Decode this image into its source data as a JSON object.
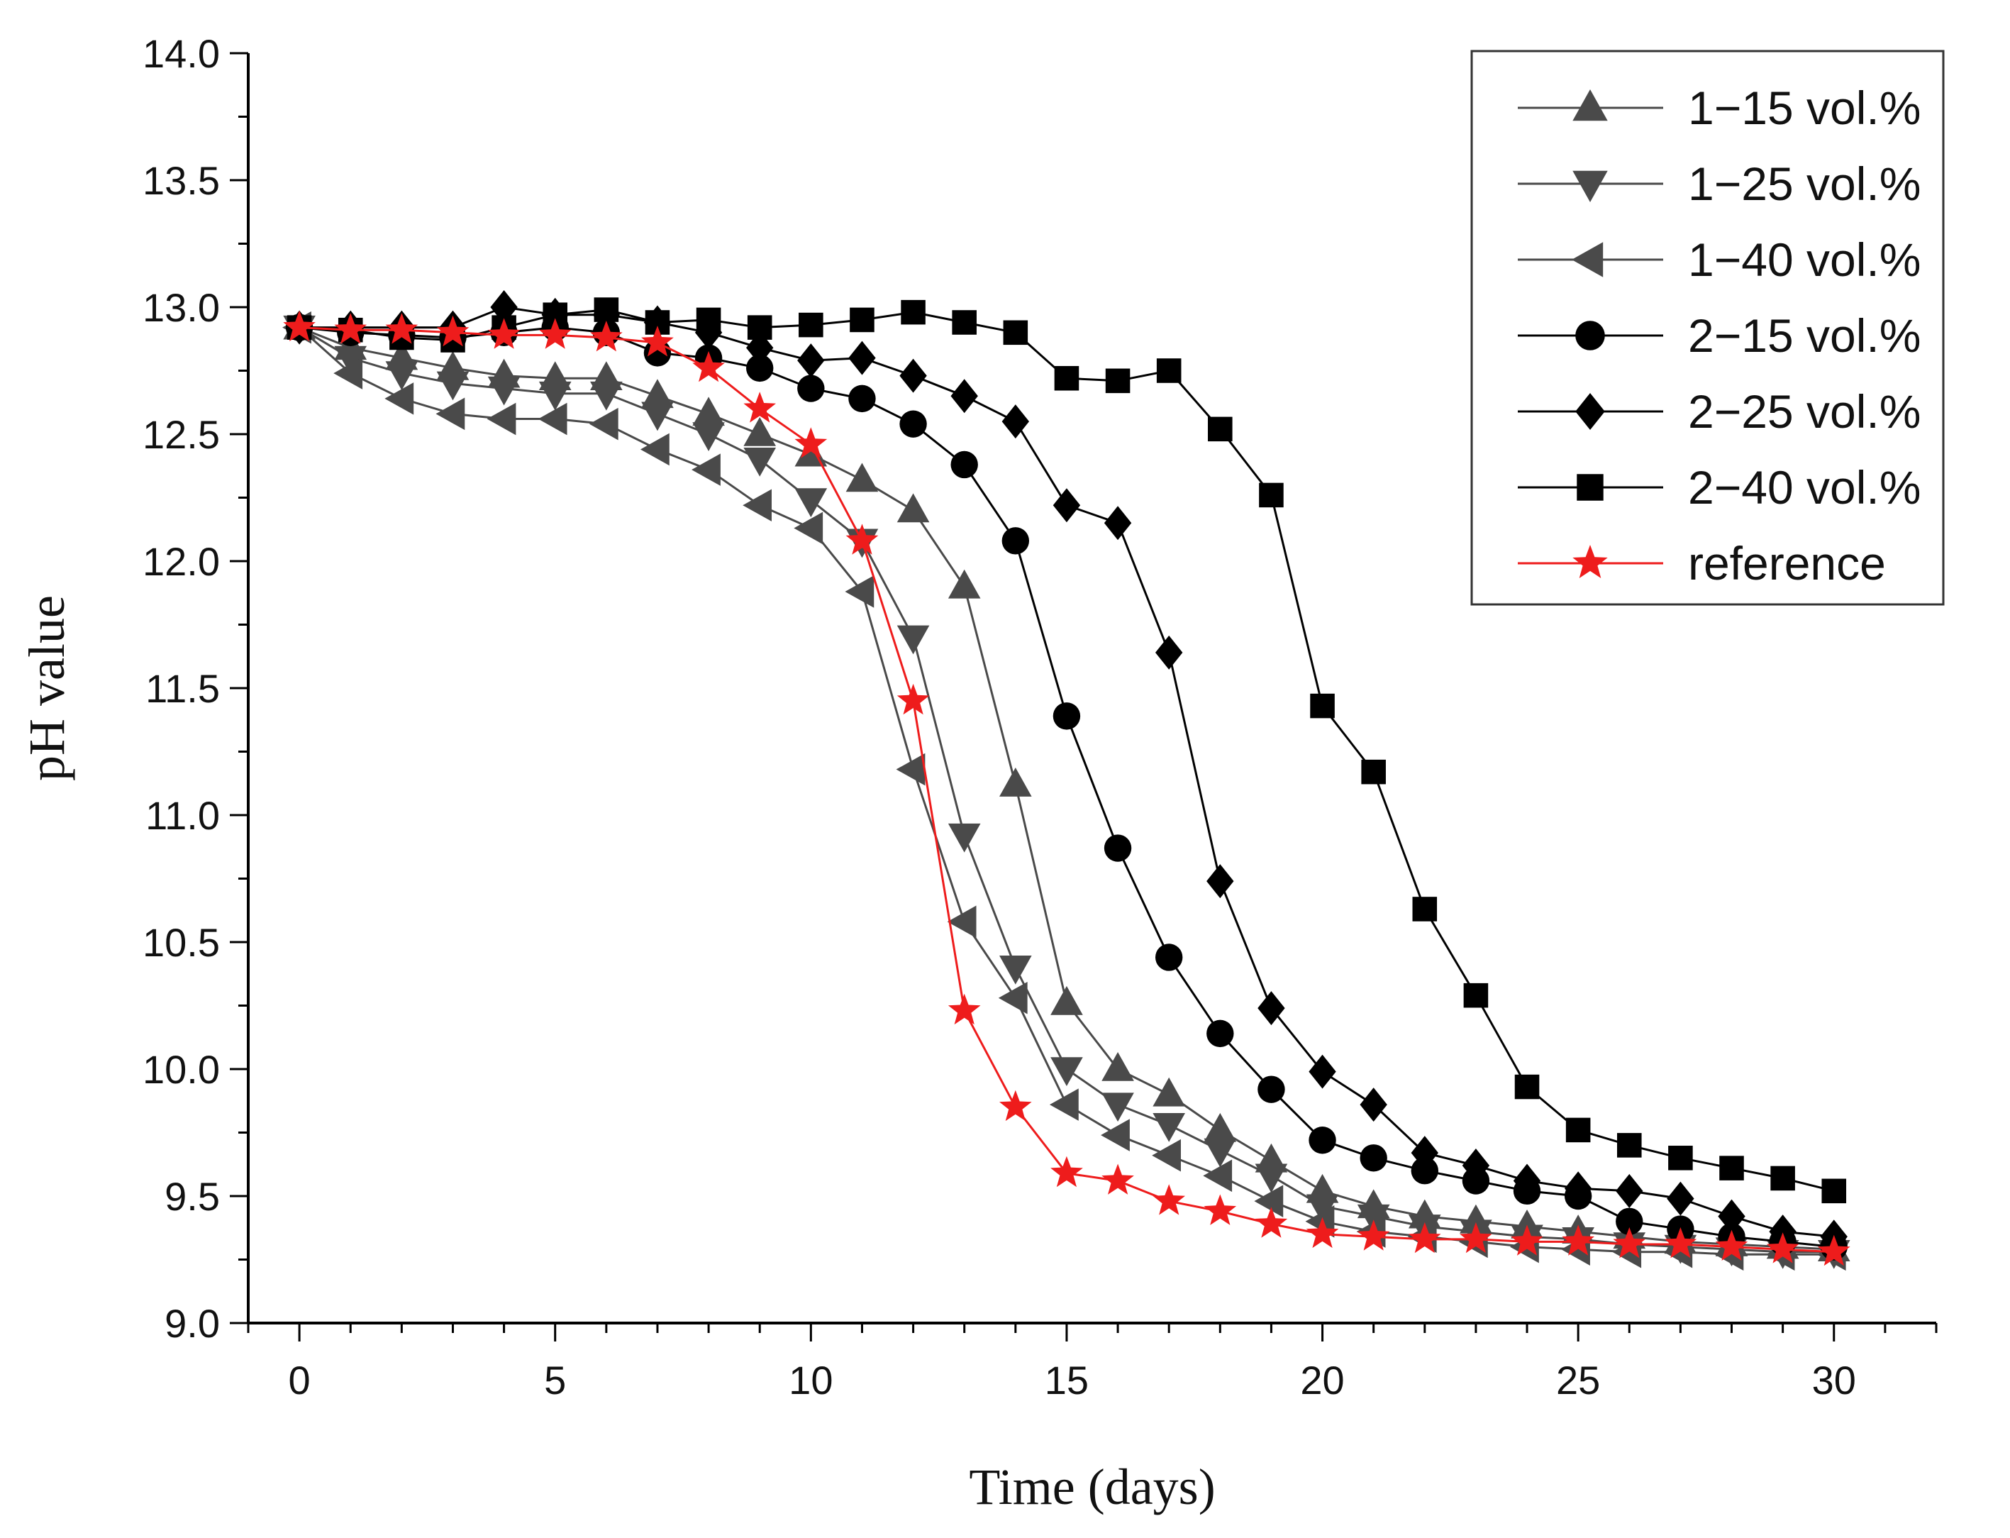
{
  "chart_data": {
    "type": "line",
    "xlabel": "Time (days)",
    "ylabel": "pH value",
    "xlim": [
      -1,
      32
    ],
    "ylim": [
      9.0,
      14.0
    ],
    "x_ticks": [
      "0",
      "5",
      "10",
      "15",
      "20",
      "25",
      "30"
    ],
    "y_ticks": [
      "9.0",
      "9.5",
      "10.0",
      "10.5",
      "11.0",
      "11.5",
      "12.0",
      "12.5",
      "13.0",
      "13.5",
      "14.0"
    ],
    "grid": false,
    "legend_position": "top-right",
    "x": [
      0,
      1,
      2,
      3,
      4,
      5,
      6,
      7,
      8,
      9,
      10,
      11,
      12,
      13,
      14,
      15,
      16,
      17,
      18,
      19,
      20,
      21,
      22,
      23,
      24,
      25,
      26,
      27,
      28,
      29,
      30
    ],
    "series": [
      {
        "name": "1−15 vol.%",
        "marker": "triangle-up",
        "color": "#4a4a4a",
        "values": [
          12.92,
          12.84,
          12.8,
          12.76,
          12.73,
          12.72,
          12.72,
          12.65,
          12.58,
          12.5,
          12.42,
          12.32,
          12.2,
          11.9,
          11.12,
          10.26,
          10.0,
          9.9,
          9.76,
          9.64,
          9.52,
          9.46,
          9.42,
          9.4,
          9.38,
          9.36,
          9.34,
          9.32,
          9.31,
          9.3,
          9.29
        ]
      },
      {
        "name": "1−25 vol.%",
        "marker": "triangle-down",
        "color": "#4a4a4a",
        "values": [
          12.92,
          12.8,
          12.74,
          12.7,
          12.68,
          12.66,
          12.66,
          12.58,
          12.5,
          12.4,
          12.24,
          12.08,
          11.7,
          10.92,
          10.4,
          10.0,
          9.86,
          9.78,
          9.68,
          9.58,
          9.46,
          9.42,
          9.38,
          9.36,
          9.34,
          9.33,
          9.31,
          9.3,
          9.29,
          9.28,
          9.28
        ]
      },
      {
        "name": "1−40 vol.%",
        "marker": "triangle-left",
        "color": "#4a4a4a",
        "values": [
          12.92,
          12.74,
          12.64,
          12.58,
          12.56,
          12.56,
          12.54,
          12.44,
          12.36,
          12.22,
          12.13,
          11.88,
          11.18,
          10.58,
          10.28,
          9.86,
          9.74,
          9.66,
          9.58,
          9.48,
          9.4,
          9.36,
          9.34,
          9.32,
          9.3,
          9.29,
          9.28,
          9.28,
          9.27,
          9.27,
          9.27
        ]
      },
      {
        "name": "2−15 vol.%",
        "marker": "circle",
        "color": "#000000",
        "values": [
          12.92,
          12.9,
          12.89,
          12.88,
          12.9,
          12.92,
          12.9,
          12.82,
          12.8,
          12.76,
          12.68,
          12.64,
          12.54,
          12.38,
          12.08,
          11.39,
          10.87,
          10.44,
          10.14,
          9.92,
          9.72,
          9.65,
          9.6,
          9.56,
          9.52,
          9.5,
          9.4,
          9.37,
          9.34,
          9.32,
          9.3
        ]
      },
      {
        "name": "2−25 vol.%",
        "marker": "diamond",
        "color": "#000000",
        "values": [
          12.92,
          12.92,
          12.92,
          12.92,
          13.0,
          12.97,
          12.97,
          12.94,
          12.9,
          12.84,
          12.79,
          12.8,
          12.73,
          12.65,
          12.55,
          12.22,
          12.15,
          11.64,
          10.74,
          10.24,
          9.99,
          9.86,
          9.67,
          9.62,
          9.56,
          9.53,
          9.52,
          9.49,
          9.42,
          9.36,
          9.34
        ]
      },
      {
        "name": "2−40 vol.%",
        "marker": "square",
        "color": "#000000",
        "values": [
          12.92,
          12.91,
          12.88,
          12.87,
          12.92,
          12.97,
          12.99,
          12.94,
          12.95,
          12.92,
          12.93,
          12.95,
          12.98,
          12.94,
          12.9,
          12.72,
          12.71,
          12.75,
          12.52,
          12.26,
          11.43,
          11.17,
          10.63,
          10.29,
          9.93,
          9.76,
          9.7,
          9.65,
          9.61,
          9.57,
          9.52
        ]
      },
      {
        "name": "reference",
        "marker": "star",
        "color": "#ee1c1c",
        "values": [
          12.92,
          12.91,
          12.91,
          12.9,
          12.89,
          12.89,
          12.88,
          12.86,
          12.76,
          12.6,
          12.46,
          12.08,
          11.45,
          10.23,
          9.85,
          9.59,
          9.56,
          9.48,
          9.44,
          9.39,
          9.35,
          9.34,
          9.33,
          9.33,
          9.32,
          9.32,
          9.31,
          9.31,
          9.3,
          9.29,
          9.28
        ]
      }
    ]
  }
}
